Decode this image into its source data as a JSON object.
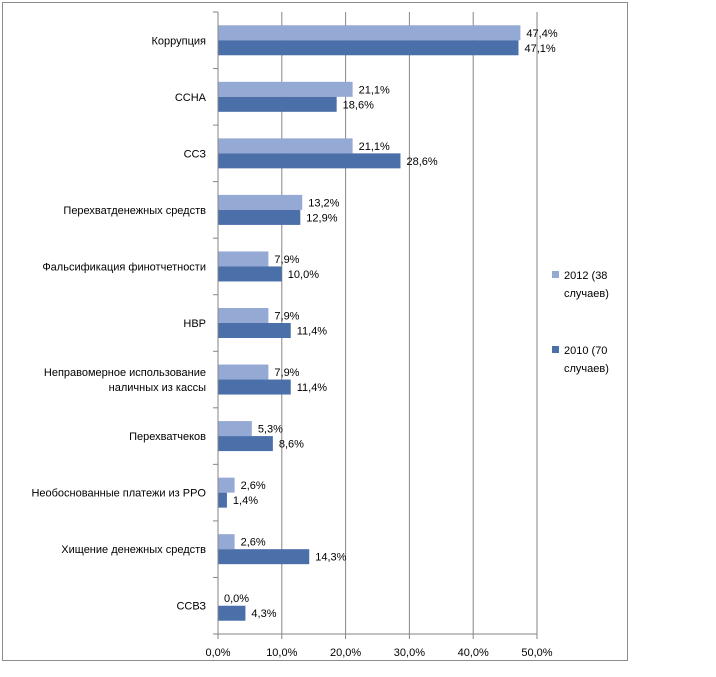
{
  "chart_data": {
    "type": "bar",
    "orientation": "horizontal",
    "categories": [
      [
        "Коррупция"
      ],
      [
        "ССНА"
      ],
      [
        "ССЗ"
      ],
      [
        "Перехватденежных средств"
      ],
      [
        "Фальсификация финотчетности"
      ],
      [
        "НВР"
      ],
      [
        "Неправомерное использование",
        "наличных из кассы"
      ],
      [
        "Перехватчеков"
      ],
      [
        "Необоснованные платежи из PPO"
      ],
      [
        "Хищение денежных средств"
      ],
      [
        "ССВЗ"
      ]
    ],
    "series": [
      {
        "name": [
          "2012 (38",
          "случаев)"
        ],
        "color": "#95a9d5",
        "values": [
          47.4,
          21.1,
          21.1,
          13.2,
          7.9,
          7.9,
          7.9,
          5.3,
          2.6,
          2.6,
          0.0
        ],
        "labels": [
          "47,4%",
          "21,1%",
          "21,1%",
          "13,2%",
          "7,9%",
          "7,9%",
          "7,9%",
          "5,3%",
          "2,6%",
          "2,6%",
          "0,0%"
        ]
      },
      {
        "name": [
          "2010 (70",
          "случаев)"
        ],
        "color": "#4a6fa9",
        "values": [
          47.1,
          18.6,
          28.6,
          12.9,
          10.0,
          11.4,
          11.4,
          8.6,
          1.4,
          14.3,
          4.3
        ],
        "labels": [
          "47,1%",
          "18,6%",
          "28,6%",
          "12,9%",
          "10,0%",
          "11,4%",
          "11,4%",
          "8,6%",
          "1,4%",
          "14,3%",
          "4,3%"
        ]
      }
    ],
    "xlim": [
      0,
      50
    ],
    "xticks": [
      0,
      10,
      20,
      30,
      40,
      50
    ],
    "xtick_labels": [
      "0,0%",
      "10,0%",
      "20,0%",
      "30,0%",
      "40,0%",
      "50,0%"
    ],
    "grid": "vertical",
    "legend_position": "right"
  }
}
